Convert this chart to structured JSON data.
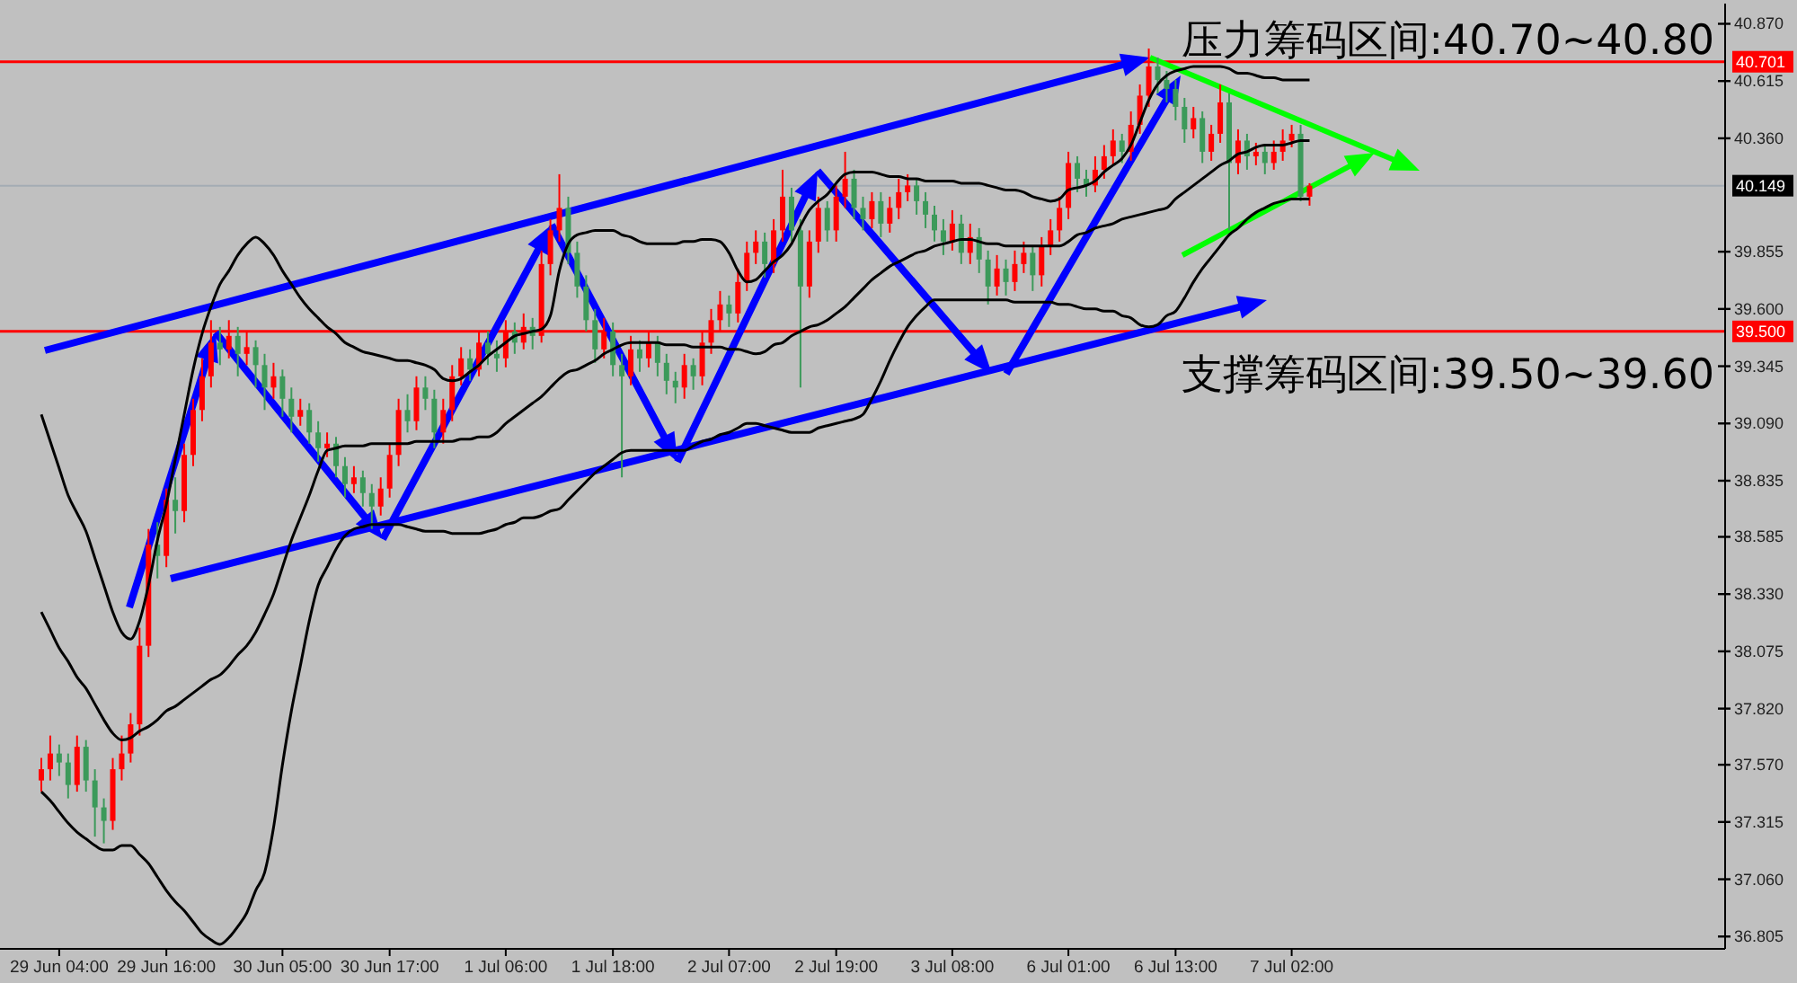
{
  "chart_data": {
    "type": "candlestick",
    "categories": [
      null,
      null,
      "29 Jun 04:00",
      null,
      null,
      null,
      null,
      null,
      null,
      null,
      null,
      null,
      null,
      null,
      "29 Jun 16:00",
      null,
      null,
      null,
      null,
      null,
      null,
      null,
      null,
      null,
      null,
      null,
      null,
      "30 Jun 05:00",
      null,
      null,
      null,
      null,
      null,
      null,
      null,
      null,
      null,
      null,
      null,
      "30 Jun 17:00",
      null,
      null,
      null,
      null,
      null,
      null,
      null,
      null,
      null,
      null,
      null,
      null,
      "1 Jul 06:00",
      null,
      null,
      null,
      null,
      null,
      null,
      null,
      null,
      null,
      null,
      null,
      "1 Jul 18:00",
      null,
      null,
      null,
      null,
      null,
      null,
      null,
      null,
      null,
      null,
      null,
      null,
      "2 Jul 07:00",
      null,
      null,
      null,
      null,
      null,
      null,
      null,
      null,
      null,
      null,
      null,
      "2 Jul 19:00",
      null,
      null,
      null,
      null,
      null,
      null,
      null,
      null,
      null,
      null,
      null,
      null,
      "3 Jul 08:00",
      null,
      null,
      null,
      null,
      null,
      null,
      null,
      null,
      null,
      null,
      null,
      null,
      "6 Jul 01:00",
      null,
      null,
      null,
      null,
      null,
      null,
      null,
      null,
      null,
      null,
      null,
      "6 Jul 13:00",
      null,
      null,
      null,
      null,
      null,
      null,
      null,
      null,
      null,
      null,
      null,
      null,
      "7 Jul 02:00",
      null,
      null
    ],
    "ohlc": [
      [
        37.5,
        37.6,
        37.45,
        37.55
      ],
      [
        37.55,
        37.7,
        37.5,
        37.62
      ],
      [
        37.62,
        37.66,
        37.52,
        37.58
      ],
      [
        37.58,
        37.62,
        37.42,
        37.48
      ],
      [
        37.48,
        37.7,
        37.45,
        37.65
      ],
      [
        37.65,
        37.68,
        37.45,
        37.5
      ],
      [
        37.5,
        37.55,
        37.25,
        37.38
      ],
      [
        37.38,
        37.42,
        37.22,
        37.32
      ],
      [
        37.32,
        37.6,
        37.28,
        37.55
      ],
      [
        37.55,
        37.7,
        37.5,
        37.62
      ],
      [
        37.62,
        37.8,
        37.58,
        37.75
      ],
      [
        37.75,
        38.18,
        37.7,
        38.1
      ],
      [
        38.1,
        38.62,
        38.05,
        38.55
      ],
      [
        38.55,
        38.65,
        38.4,
        38.5
      ],
      [
        38.5,
        38.8,
        38.45,
        38.75
      ],
      [
        38.75,
        38.85,
        38.6,
        38.7
      ],
      [
        38.7,
        39.0,
        38.65,
        38.95
      ],
      [
        38.95,
        39.2,
        38.9,
        39.15
      ],
      [
        39.15,
        39.38,
        39.1,
        39.3
      ],
      [
        39.3,
        39.55,
        39.25,
        39.45
      ],
      [
        39.45,
        39.52,
        39.35,
        39.42
      ],
      [
        39.42,
        39.55,
        39.38,
        39.48
      ],
      [
        39.48,
        39.52,
        39.3,
        39.4
      ],
      [
        39.4,
        39.5,
        39.35,
        39.43
      ],
      [
        39.43,
        39.46,
        39.25,
        39.35
      ],
      [
        39.35,
        39.4,
        39.15,
        39.25
      ],
      [
        39.25,
        39.36,
        39.2,
        39.3
      ],
      [
        39.3,
        39.33,
        39.12,
        39.2
      ],
      [
        39.2,
        39.25,
        39.05,
        39.12
      ],
      [
        39.12,
        39.2,
        39.08,
        39.15
      ],
      [
        39.15,
        39.18,
        39.0,
        39.05
      ],
      [
        39.05,
        39.1,
        38.92,
        38.98
      ],
      [
        38.98,
        39.05,
        38.94,
        39.0
      ],
      [
        39.0,
        39.03,
        38.85,
        38.9
      ],
      [
        38.9,
        38.94,
        38.76,
        38.82
      ],
      [
        38.82,
        38.9,
        38.78,
        38.85
      ],
      [
        38.85,
        38.88,
        38.72,
        38.78
      ],
      [
        38.78,
        38.82,
        38.62,
        38.72
      ],
      [
        38.72,
        38.85,
        38.68,
        38.8
      ],
      [
        38.8,
        39.0,
        38.76,
        38.95
      ],
      [
        38.95,
        39.2,
        38.9,
        39.15
      ],
      [
        39.15,
        39.22,
        39.05,
        39.1
      ],
      [
        39.1,
        39.3,
        39.06,
        39.25
      ],
      [
        39.25,
        39.3,
        39.15,
        39.2
      ],
      [
        39.2,
        39.24,
        38.98,
        39.05
      ],
      [
        39.05,
        39.2,
        39.0,
        39.15
      ],
      [
        39.15,
        39.35,
        39.1,
        39.3
      ],
      [
        39.3,
        39.43,
        39.26,
        39.38
      ],
      [
        39.38,
        39.42,
        39.28,
        39.33
      ],
      [
        39.33,
        39.5,
        39.3,
        39.45
      ],
      [
        39.45,
        39.5,
        39.35,
        39.4
      ],
      [
        39.4,
        39.46,
        39.32,
        39.38
      ],
      [
        39.38,
        39.55,
        39.34,
        39.5
      ],
      [
        39.5,
        39.54,
        39.4,
        39.45
      ],
      [
        39.45,
        39.58,
        39.42,
        39.52
      ],
      [
        39.52,
        39.56,
        39.42,
        39.48
      ],
      [
        39.48,
        39.86,
        39.45,
        39.8
      ],
      [
        39.8,
        40.0,
        39.75,
        39.95
      ],
      [
        39.95,
        40.2,
        39.9,
        40.05
      ],
      [
        40.05,
        40.1,
        39.8,
        39.85
      ],
      [
        39.85,
        39.9,
        39.65,
        39.7
      ],
      [
        39.7,
        39.75,
        39.5,
        39.55
      ],
      [
        39.55,
        39.6,
        39.36,
        39.42
      ],
      [
        39.42,
        39.56,
        39.38,
        39.5
      ],
      [
        39.5,
        39.54,
        39.3,
        39.35
      ],
      [
        39.35,
        39.4,
        38.85,
        39.3
      ],
      [
        39.3,
        39.48,
        39.26,
        39.42
      ],
      [
        39.42,
        39.46,
        39.32,
        39.38
      ],
      [
        39.38,
        39.5,
        39.34,
        39.45
      ],
      [
        39.45,
        39.48,
        39.3,
        39.36
      ],
      [
        39.36,
        39.4,
        39.22,
        39.28
      ],
      [
        39.28,
        39.32,
        39.18,
        39.25
      ],
      [
        39.25,
        39.4,
        39.2,
        39.35
      ],
      [
        39.35,
        39.38,
        39.24,
        39.3
      ],
      [
        39.3,
        39.5,
        39.26,
        39.45
      ],
      [
        39.45,
        39.6,
        39.4,
        39.55
      ],
      [
        39.55,
        39.68,
        39.5,
        39.62
      ],
      [
        39.62,
        39.66,
        39.52,
        39.58
      ],
      [
        39.58,
        39.78,
        39.54,
        39.72
      ],
      [
        39.72,
        39.9,
        39.68,
        39.85
      ],
      [
        39.85,
        39.95,
        39.8,
        39.9
      ],
      [
        39.9,
        39.94,
        39.74,
        39.8
      ],
      [
        39.8,
        40.0,
        39.76,
        39.95
      ],
      [
        39.95,
        40.22,
        39.9,
        40.1
      ],
      [
        40.1,
        40.14,
        39.9,
        39.95
      ],
      [
        39.95,
        40.0,
        39.25,
        39.7
      ],
      [
        39.7,
        39.95,
        39.65,
        39.9
      ],
      [
        39.9,
        40.1,
        39.85,
        40.05
      ],
      [
        40.05,
        40.08,
        39.9,
        39.95
      ],
      [
        39.95,
        40.15,
        39.9,
        40.1
      ],
      [
        40.1,
        40.3,
        40.05,
        40.18
      ],
      [
        40.18,
        40.22,
        40.0,
        40.05
      ],
      [
        40.05,
        40.1,
        39.95,
        40.0
      ],
      [
        40.0,
        40.12,
        39.96,
        40.08
      ],
      [
        40.08,
        40.12,
        39.92,
        39.98
      ],
      [
        39.98,
        40.1,
        39.94,
        40.05
      ],
      [
        40.05,
        40.18,
        40.0,
        40.12
      ],
      [
        40.12,
        40.2,
        40.08,
        40.15
      ],
      [
        40.15,
        40.18,
        40.02,
        40.08
      ],
      [
        40.08,
        40.12,
        39.96,
        40.02
      ],
      [
        40.02,
        40.06,
        39.9,
        39.95
      ],
      [
        39.95,
        40.0,
        39.84,
        39.9
      ],
      [
        39.9,
        40.04,
        39.86,
        39.98
      ],
      [
        39.98,
        40.02,
        39.8,
        39.85
      ],
      [
        39.85,
        39.98,
        39.8,
        39.92
      ],
      [
        39.92,
        39.96,
        39.76,
        39.82
      ],
      [
        39.82,
        39.86,
        39.62,
        39.7
      ],
      [
        39.7,
        39.84,
        39.66,
        39.78
      ],
      [
        39.78,
        39.82,
        39.66,
        39.72
      ],
      [
        39.72,
        39.86,
        39.68,
        39.8
      ],
      [
        39.8,
        39.9,
        39.76,
        39.85
      ],
      [
        39.85,
        39.88,
        39.68,
        39.75
      ],
      [
        39.75,
        39.92,
        39.7,
        39.88
      ],
      [
        39.88,
        40.0,
        39.84,
        39.95
      ],
      [
        39.95,
        40.1,
        39.9,
        40.05
      ],
      [
        40.05,
        40.3,
        40.0,
        40.25
      ],
      [
        40.25,
        40.28,
        40.12,
        40.18
      ],
      [
        40.18,
        40.22,
        40.1,
        40.15
      ],
      [
        40.15,
        40.28,
        40.12,
        40.22
      ],
      [
        40.22,
        40.33,
        40.18,
        40.28
      ],
      [
        40.28,
        40.4,
        40.24,
        40.35
      ],
      [
        40.35,
        40.38,
        40.25,
        40.3
      ],
      [
        40.3,
        40.48,
        40.26,
        40.42
      ],
      [
        40.42,
        40.6,
        40.38,
        40.55
      ],
      [
        40.55,
        40.76,
        40.5,
        40.68
      ],
      [
        40.68,
        40.72,
        40.56,
        40.62
      ],
      [
        40.62,
        40.66,
        40.52,
        40.58
      ],
      [
        40.58,
        40.62,
        40.44,
        40.5
      ],
      [
        40.5,
        40.54,
        40.34,
        40.4
      ],
      [
        40.4,
        40.5,
        40.36,
        40.45
      ],
      [
        40.45,
        40.48,
        40.25,
        40.3
      ],
      [
        40.3,
        40.42,
        40.26,
        40.38
      ],
      [
        40.38,
        40.6,
        40.34,
        40.52
      ],
      [
        40.52,
        40.56,
        39.95,
        40.25
      ],
      [
        40.25,
        40.4,
        40.2,
        40.35
      ],
      [
        40.35,
        40.38,
        40.22,
        40.28
      ],
      [
        40.28,
        40.34,
        40.24,
        40.3
      ],
      [
        40.3,
        40.33,
        40.2,
        40.25
      ],
      [
        40.25,
        40.35,
        40.22,
        40.3
      ],
      [
        40.3,
        40.4,
        40.26,
        40.35
      ],
      [
        40.35,
        40.42,
        40.32,
        40.38
      ],
      [
        40.38,
        40.42,
        40.08,
        40.1
      ],
      [
        40.1,
        40.16,
        40.06,
        40.149
      ]
    ],
    "colors": [
      "#ff0000",
      "#ff0000",
      "#3c9a5a",
      "#3c9a5a",
      "#ff0000",
      "#3c9a5a",
      "#3c9a5a",
      "#3c9a5a",
      "#ff0000",
      "#ff0000",
      "#ff0000",
      "#ff0000",
      "#ff0000",
      "#3c9a5a",
      "#ff0000",
      "#3c9a5a",
      "#ff0000",
      "#ff0000",
      "#ff0000",
      "#ff0000",
      "#3c9a5a",
      "#ff0000",
      "#3c9a5a",
      "#ff0000",
      "#3c9a5a",
      "#3c9a5a",
      "#ff0000",
      "#3c9a5a",
      "#3c9a5a",
      "#ff0000",
      "#3c9a5a",
      "#3c9a5a",
      "#ff0000",
      "#3c9a5a",
      "#3c9a5a",
      "#ff0000",
      "#3c9a5a",
      "#3c9a5a",
      "#ff0000",
      "#ff0000",
      "#ff0000",
      "#3c9a5a",
      "#ff0000",
      "#3c9a5a",
      "#3c9a5a",
      "#ff0000",
      "#ff0000",
      "#ff0000",
      "#3c9a5a",
      "#ff0000",
      "#3c9a5a",
      "#3c9a5a",
      "#ff0000",
      "#3c9a5a",
      "#ff0000",
      "#3c9a5a",
      "#ff0000",
      "#ff0000",
      "#ff0000",
      "#3c9a5a",
      "#3c9a5a",
      "#3c9a5a",
      "#3c9a5a",
      "#ff0000",
      "#3c9a5a",
      "#3c9a5a",
      "#ff0000",
      "#3c9a5a",
      "#ff0000",
      "#3c9a5a",
      "#3c9a5a",
      "#3c9a5a",
      "#ff0000",
      "#3c9a5a",
      "#ff0000",
      "#ff0000",
      "#ff0000",
      "#3c9a5a",
      "#ff0000",
      "#ff0000",
      "#ff0000",
      "#3c9a5a",
      "#ff0000",
      "#ff0000",
      "#3c9a5a",
      "#3c9a5a",
      "#ff0000",
      "#ff0000",
      "#3c9a5a",
      "#ff0000",
      "#ff0000",
      "#3c9a5a",
      "#3c9a5a",
      "#ff0000",
      "#3c9a5a",
      "#ff0000",
      "#ff0000",
      "#ff0000",
      "#3c9a5a",
      "#3c9a5a",
      "#3c9a5a",
      "#3c9a5a",
      "#ff0000",
      "#3c9a5a",
      "#ff0000",
      "#3c9a5a",
      "#3c9a5a",
      "#ff0000",
      "#3c9a5a",
      "#ff0000",
      "#ff0000",
      "#3c9a5a",
      "#ff0000",
      "#ff0000",
      "#ff0000",
      "#ff0000",
      "#3c9a5a",
      "#3c9a5a",
      "#ff0000",
      "#ff0000",
      "#ff0000",
      "#3c9a5a",
      "#ff0000",
      "#ff0000",
      "#ff0000",
      "#3c9a5a",
      "#3c9a5a",
      "#3c9a5a",
      "#3c9a5a",
      "#ff0000",
      "#3c9a5a",
      "#ff0000",
      "#ff0000",
      "#3c9a5a",
      "#ff0000",
      "#3c9a5a",
      "#ff0000",
      "#3c9a5a",
      "#ff0000",
      "#ff0000",
      "#ff0000",
      "#3c9a5a",
      "#ff0000"
    ],
    "series": [
      {
        "type": "line",
        "color": "#000000",
        "values": [
          39.13,
          39.01,
          38.89,
          38.77,
          38.69,
          38.61,
          38.49,
          38.37,
          38.25,
          38.16,
          38.13,
          38.21,
          38.37,
          38.57,
          38.73,
          38.93,
          39.13,
          39.33,
          39.49,
          39.61,
          39.71,
          39.77,
          39.84,
          39.89,
          39.92,
          39.89,
          39.84,
          39.77,
          39.71,
          39.65,
          39.6,
          39.56,
          39.52,
          39.49,
          39.45,
          39.43,
          39.41,
          39.4,
          39.39,
          39.38,
          39.37,
          39.37,
          39.36,
          39.35,
          39.33,
          39.29,
          39.28,
          39.29,
          39.32,
          39.35,
          39.39,
          39.42,
          39.45,
          39.48,
          39.49,
          39.5,
          39.51,
          39.57,
          39.77,
          39.89,
          39.93,
          39.94,
          39.95,
          39.95,
          39.95,
          39.93,
          39.92,
          39.9,
          39.89,
          39.89,
          39.89,
          39.89,
          39.9,
          39.9,
          39.91,
          39.91,
          39.9,
          39.85,
          39.77,
          39.72,
          39.73,
          39.77,
          39.81,
          39.84,
          39.89,
          39.97,
          40.04,
          40.08,
          40.11,
          40.16,
          40.2,
          40.21,
          40.21,
          40.21,
          40.2,
          40.19,
          40.19,
          40.18,
          40.18,
          40.17,
          40.17,
          40.17,
          40.17,
          40.16,
          40.16,
          40.16,
          40.15,
          40.14,
          40.13,
          40.13,
          40.12,
          40.1,
          40.09,
          40.08,
          40.09,
          40.13,
          40.14,
          40.15,
          40.17,
          40.21,
          40.24,
          40.27,
          40.33,
          40.43,
          40.53,
          40.6,
          40.64,
          40.66,
          40.67,
          40.68,
          40.68,
          40.68,
          40.68,
          40.67,
          40.65,
          40.65,
          40.64,
          40.63,
          40.63,
          40.62,
          40.62,
          40.62,
          40.62
        ]
      },
      {
        "type": "line",
        "color": "#000000",
        "values": [
          38.25,
          38.17,
          38.09,
          38.03,
          37.96,
          37.91,
          37.84,
          37.77,
          37.71,
          37.68,
          37.69,
          37.72,
          37.74,
          37.77,
          37.81,
          37.83,
          37.86,
          37.89,
          37.92,
          37.95,
          37.97,
          38.01,
          38.06,
          38.1,
          38.16,
          38.24,
          38.33,
          38.45,
          38.57,
          38.67,
          38.77,
          38.88,
          38.97,
          38.98,
          38.99,
          38.99,
          38.99,
          39.0,
          39.0,
          39.0,
          39.0,
          39.0,
          39.01,
          39.01,
          39.01,
          39.01,
          39.01,
          39.02,
          39.02,
          39.03,
          39.03,
          39.05,
          39.09,
          39.12,
          39.15,
          39.18,
          39.21,
          39.25,
          39.29,
          39.32,
          39.33,
          39.35,
          39.37,
          39.4,
          39.42,
          39.44,
          39.45,
          39.45,
          39.45,
          39.45,
          39.44,
          39.44,
          39.44,
          39.43,
          39.43,
          39.43,
          39.43,
          39.42,
          39.42,
          39.41,
          39.4,
          39.41,
          39.44,
          39.45,
          39.48,
          39.5,
          39.52,
          39.53,
          39.55,
          39.58,
          39.61,
          39.65,
          39.69,
          39.73,
          39.76,
          39.79,
          39.81,
          39.83,
          39.85,
          39.86,
          39.88,
          39.89,
          39.9,
          39.91,
          39.91,
          39.9,
          39.89,
          39.89,
          39.88,
          39.88,
          39.88,
          39.88,
          39.88,
          39.88,
          39.88,
          39.9,
          39.93,
          39.94,
          39.96,
          39.97,
          39.98,
          40.0,
          40.01,
          40.02,
          40.03,
          40.04,
          40.05,
          40.09,
          40.12,
          40.15,
          40.18,
          40.21,
          40.24,
          40.26,
          40.29,
          40.3,
          40.32,
          40.33,
          40.33,
          40.33,
          40.34,
          40.35,
          40.35
        ]
      },
      {
        "type": "line",
        "color": "#000000",
        "values": [
          37.45,
          37.41,
          37.36,
          37.31,
          37.27,
          37.24,
          37.21,
          37.19,
          37.19,
          37.21,
          37.21,
          37.17,
          37.13,
          37.07,
          37.01,
          36.96,
          36.92,
          36.87,
          36.82,
          36.79,
          36.77,
          36.8,
          36.85,
          36.91,
          37.01,
          37.09,
          37.29,
          37.57,
          37.81,
          38.01,
          38.21,
          38.37,
          38.45,
          38.53,
          38.59,
          38.62,
          38.63,
          38.64,
          38.64,
          38.64,
          38.64,
          38.63,
          38.62,
          38.61,
          38.61,
          38.61,
          38.6,
          38.6,
          38.6,
          38.6,
          38.61,
          38.62,
          38.64,
          38.65,
          38.67,
          38.67,
          38.68,
          38.7,
          38.71,
          38.75,
          38.79,
          38.83,
          38.87,
          38.9,
          38.93,
          38.96,
          38.97,
          38.97,
          38.97,
          38.97,
          38.97,
          38.97,
          38.97,
          38.99,
          39.01,
          39.02,
          39.04,
          39.05,
          39.07,
          39.09,
          39.09,
          39.08,
          39.07,
          39.06,
          39.05,
          39.05,
          39.05,
          39.07,
          39.08,
          39.09,
          39.1,
          39.11,
          39.13,
          39.2,
          39.28,
          39.37,
          39.45,
          39.52,
          39.57,
          39.61,
          39.64,
          39.64,
          39.64,
          39.64,
          39.64,
          39.64,
          39.64,
          39.64,
          39.64,
          39.63,
          39.63,
          39.63,
          39.63,
          39.63,
          39.62,
          39.62,
          39.61,
          39.6,
          39.6,
          39.59,
          39.59,
          39.57,
          39.56,
          39.53,
          39.52,
          39.53,
          39.57,
          39.59,
          39.65,
          39.72,
          39.78,
          39.83,
          39.88,
          39.93,
          39.96,
          40.0,
          40.03,
          40.05,
          40.07,
          40.08,
          40.09,
          40.09,
          40.09
        ]
      }
    ],
    "ylim": [
      36.75,
      40.96
    ],
    "yticks": [
      {
        "value": 40.87,
        "label": "40.870"
      },
      {
        "value": 40.615,
        "label": "40.615"
      },
      {
        "value": 40.36,
        "label": "40.360"
      },
      {
        "value": 39.855,
        "label": "39.855"
      },
      {
        "value": 39.6,
        "label": "39.600"
      },
      {
        "value": 39.345,
        "label": "39.345"
      },
      {
        "value": 39.09,
        "label": "39.090"
      },
      {
        "value": 38.835,
        "label": "38.835"
      },
      {
        "value": 38.585,
        "label": "38.585"
      },
      {
        "value": 38.33,
        "label": "38.330"
      },
      {
        "value": 38.075,
        "label": "38.075"
      },
      {
        "value": 37.82,
        "label": "37.820"
      },
      {
        "value": 37.57,
        "label": "37.570"
      },
      {
        "value": 37.315,
        "label": "37.315"
      },
      {
        "value": 37.06,
        "label": "37.060"
      },
      {
        "value": 36.805,
        "label": "36.805"
      }
    ],
    "ref_lines": [
      {
        "axis": "y",
        "value": 40.701,
        "label": "40.701",
        "color": "#ff0000"
      },
      {
        "axis": "y",
        "value": 40.149,
        "label": "40.149",
        "color": "#a4acb4"
      },
      {
        "axis": "y",
        "value": 39.5,
        "label": "39.500",
        "color": "#ff0000"
      }
    ],
    "annotations": [
      "压力筹码区间:40.70~40.80",
      "支撑筹码区间:39.50~39.60"
    ]
  }
}
